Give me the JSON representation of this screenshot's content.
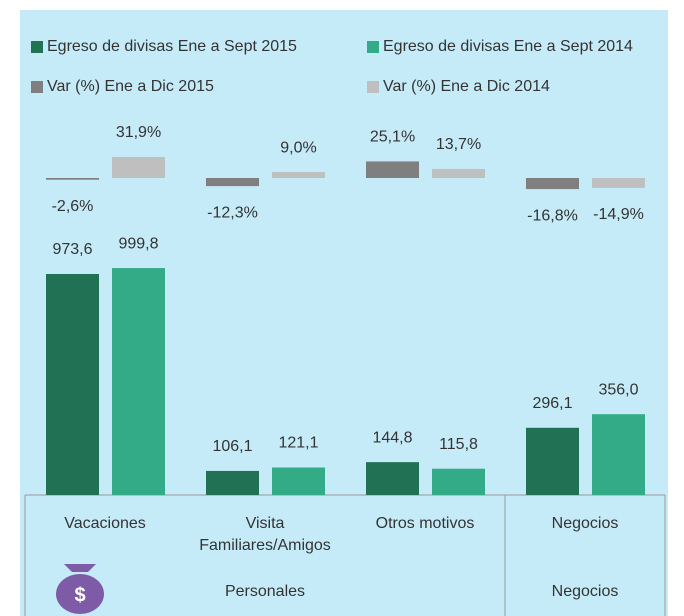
{
  "chart_data": {
    "type": "bar",
    "categories": [
      "Vacaciones",
      "Visita Familiares/Amigos",
      "Otros motivos",
      "Negocios"
    ],
    "groups": [
      {
        "label": "Personales",
        "size": 3
      },
      {
        "label": "Negocios",
        "size": 1
      }
    ],
    "series": [
      {
        "name": "Egreso de divisas Ene a Sept 2015",
        "color": "#217154",
        "values": [
          973.6,
          106.1,
          144.8,
          296.1
        ],
        "value_labels": [
          "973,6",
          "106,1",
          "144,8",
          "296,1"
        ]
      },
      {
        "name": "Egreso de divisas Ene a Sept 2014",
        "color": "#33ab87",
        "values": [
          999.8,
          121.1,
          115.8,
          356.0
        ],
        "value_labels": [
          "999,8",
          "121,1",
          "115,8",
          "356,0"
        ]
      },
      {
        "name": "Var (%) Ene a Dic 2015",
        "color": "#7f7f7f",
        "axis": "y2",
        "values": [
          -2.6,
          -12.3,
          25.1,
          -16.8
        ],
        "value_labels": [
          "-2,6%",
          "-12,3%",
          "25,1%",
          "-16,8%"
        ]
      },
      {
        "name": "Var (%) Ene a Dic 2014",
        "color": "#bfbfbf",
        "axis": "y2",
        "values": [
          31.9,
          9.0,
          13.7,
          -14.9
        ],
        "value_labels": [
          "31,9%",
          "9,0%",
          "13,7%",
          "-14,9%"
        ]
      }
    ],
    "icon_symbol": "$"
  }
}
